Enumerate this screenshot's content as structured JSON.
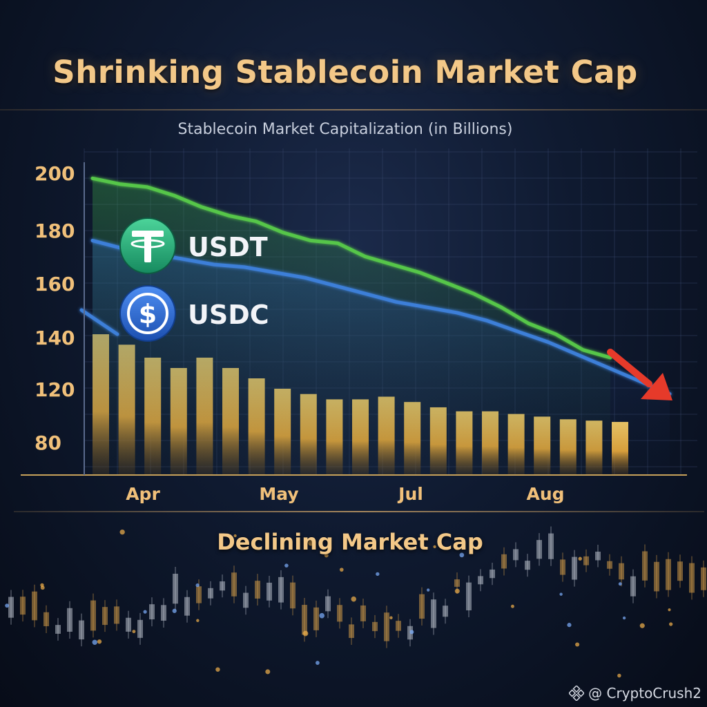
{
  "title": "Shrinking Stablecoin Market Cap",
  "footer_label": "Declining Market Cap",
  "watermark": "@ CryptoCrush2",
  "icons": {
    "usdt": "tether-logo-icon",
    "usdc": "usdc-logo-icon",
    "watermark": "binance-diamond-icon"
  },
  "colors": {
    "usdt_line": "#57c64a",
    "usdc_line": "#3c7fd8",
    "bars": "#f0b840",
    "arrow": "#e63a2a",
    "title": "#f3c888",
    "usdt_badge": "#27a37a",
    "usdc_badge": "#2e6ad0"
  },
  "chart_data": {
    "type": "line",
    "title": "Stablecoin Market Capitalization (in Billions)",
    "y_ticks": [
      200,
      180,
      160,
      140,
      120,
      80
    ],
    "x_ticks": [
      "Apr",
      "May",
      "Jul",
      "Aug"
    ],
    "grid": true,
    "series": [
      {
        "name": "USDT",
        "values": [
          198,
          196,
          195,
          192,
          188,
          185,
          183,
          179,
          176,
          175,
          170,
          167,
          164,
          160,
          156,
          151,
          145,
          141,
          135,
          132
        ]
      },
      {
        "name": "USDC",
        "values": [
          176,
          173,
          171,
          169,
          167,
          166,
          164,
          162,
          159,
          156,
          153,
          151,
          149,
          146,
          142,
          138,
          133,
          128,
          123,
          116
        ]
      },
      {
        "name": "",
        "values": [
          150,
          147,
          144,
          141
        ]
      }
    ],
    "bars": [
      141,
      137,
      132,
      128,
      132,
      128,
      124,
      120,
      116,
      112,
      112,
      114,
      110,
      106,
      103,
      103,
      101,
      99,
      97,
      96,
      95
    ]
  }
}
